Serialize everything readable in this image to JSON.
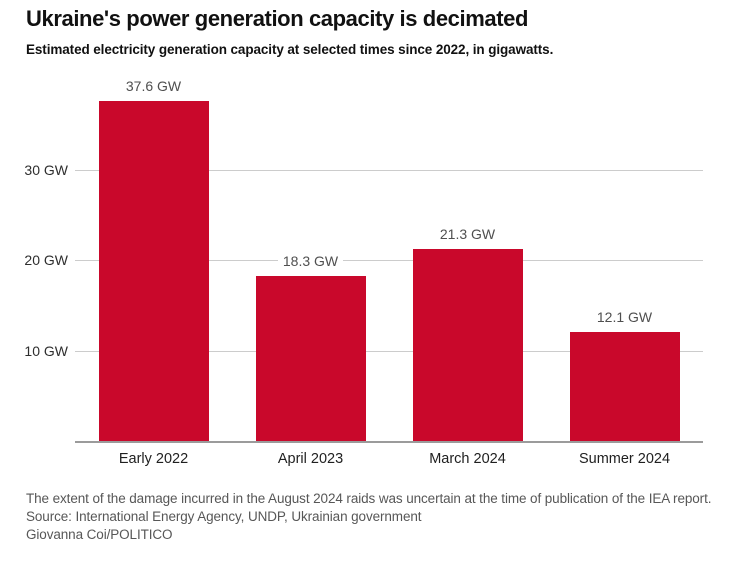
{
  "header": {
    "title": "Ukraine's power generation capacity is decimated",
    "subtitle": "Estimated electricity generation capacity at selected times since 2022, in gigawatts."
  },
  "chart_data": {
    "type": "bar",
    "categories": [
      "Early 2022",
      "April 2023",
      "March 2024",
      "Summer 2024"
    ],
    "values": [
      37.6,
      18.3,
      21.3,
      12.1
    ],
    "value_labels": [
      "37.6 GW",
      "18.3 GW",
      "21.3 GW",
      "12.1 GW"
    ],
    "yticks": [
      {
        "value": 10,
        "label": "10 GW"
      },
      {
        "value": 20,
        "label": "20 GW"
      },
      {
        "value": 30,
        "label": "30 GW"
      }
    ],
    "ylim": [
      0,
      40
    ],
    "title": "Ukraine's power generation capacity is decimated",
    "xlabel": "",
    "ylabel": "",
    "grid": true,
    "legend_position": "none",
    "bar_color": "#c9082b",
    "gridline_color": "#cccccc",
    "axisline_color": "#9b9b9b"
  },
  "footer": {
    "note": "The extent of the damage incurred in the August 2024 raids was uncertain at the time of publication of the IEA report.",
    "source": "Source: International Energy Agency, UNDP, Ukrainian government",
    "credit": "Giovanna Coi/POLITICO"
  }
}
